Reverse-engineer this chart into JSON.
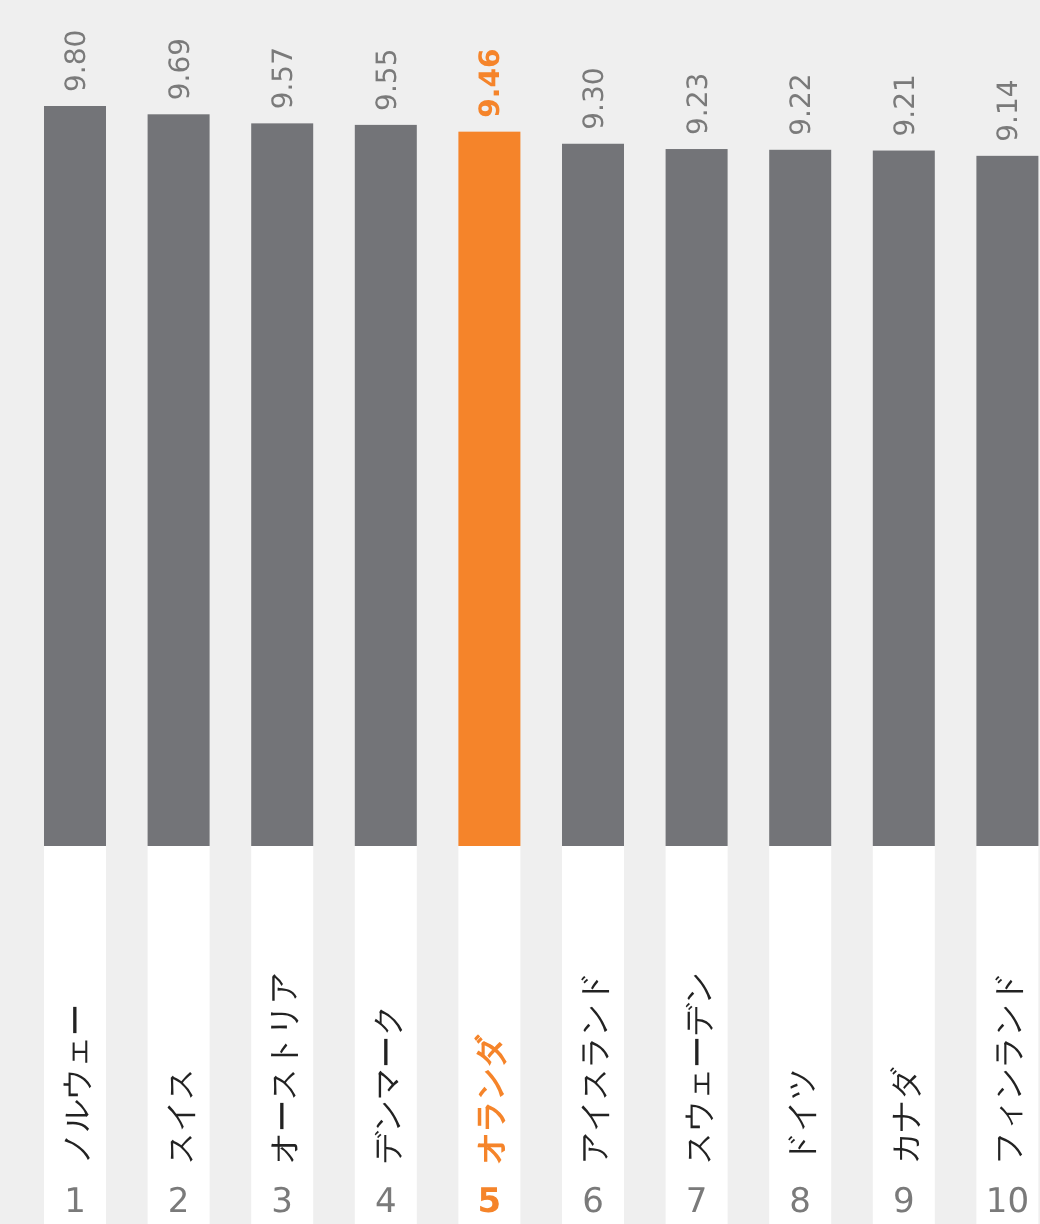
{
  "chart_data": {
    "type": "bar",
    "categories": [
      "ノルウェー",
      "スイス",
      "オーストリア",
      "デンマーク",
      "オランダ",
      "アイスランド",
      "スウェーデン",
      "ドイツ",
      "カナダ",
      "フィンランド"
    ],
    "values": [
      9.8,
      9.69,
      9.57,
      9.55,
      9.46,
      9.3,
      9.23,
      9.22,
      9.21,
      9.14
    ],
    "value_labels": [
      "9.80",
      "9.69",
      "9.57",
      "9.55",
      "9.46",
      "9.30",
      "9.23",
      "9.22",
      "9.21",
      "9.14"
    ],
    "colors": [
      "#737478",
      "#737478",
      "#737478",
      "#737478",
      "#f5842a",
      "#737478",
      "#737478",
      "#737478",
      "#737478",
      "#737478"
    ],
    "annotations": [
      "1",
      "2",
      "3",
      "4",
      "5",
      "6",
      "7",
      "8",
      "9",
      "10"
    ]
  }
}
